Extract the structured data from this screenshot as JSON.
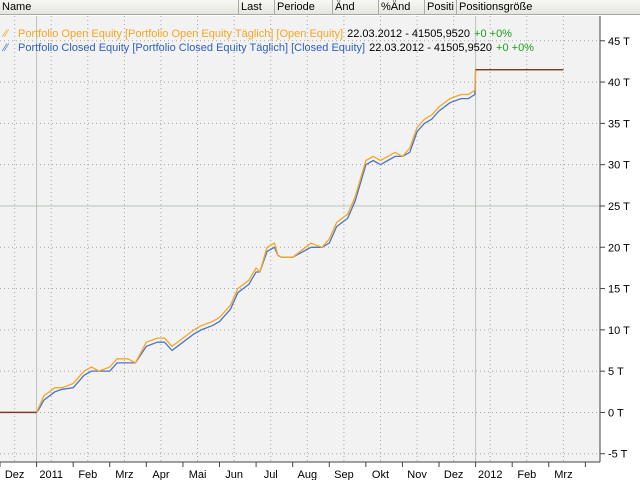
{
  "columns": [
    "Name",
    "Last",
    "Periode",
    "Änd",
    "%Änd",
    "Positi",
    "Positionsgröße"
  ],
  "legend": [
    {
      "prefix": "Portfolio Open Equity [Portfolio Open Equity  Täglich] [Open Equity]",
      "details": "22.03.2012 - 41505,9520",
      "change": "+0 +0%",
      "color": "#f5a623"
    },
    {
      "prefix": "Portfolio Closed Equity [Portfolio Closed Equity  Täglich] [Closed Equity]",
      "details": "22.03.2012 - 41505,9520",
      "change": "+0 +0%",
      "color": "#4a74c9"
    }
  ],
  "colors": {
    "open": "#f5a623",
    "closed": "#4a74c9",
    "text_closed": "#3060c0",
    "change": "#1aa01a",
    "plot_bg": "#f2f2f2",
    "grid": "#a8a8a8"
  },
  "chart_data": {
    "type": "line",
    "ylim": [
      -6,
      48
    ],
    "y_ticks": [
      -5,
      0,
      5,
      10,
      15,
      20,
      25,
      30,
      35,
      40,
      45
    ],
    "y_tick_labels": [
      "-5 T",
      "0 T",
      "5 T",
      "10 T",
      "15 T",
      "20 T",
      "25 T",
      "30 T",
      "35 T",
      "40 T",
      "45 T"
    ],
    "x_labels": [
      "Dez",
      "2011",
      "Feb",
      "Mrz",
      "Apr",
      "Mai",
      "Jun",
      "Jul",
      "Aug",
      "Sep",
      "Okt",
      "Nov",
      "Dez",
      "2012",
      "Feb",
      "Mrz"
    ],
    "x_label_index": [
      0.4,
      1.4,
      2.4,
      3.4,
      4.4,
      5.4,
      6.4,
      7.4,
      8.4,
      9.4,
      10.4,
      11.4,
      12.4,
      13.4,
      14.4,
      15.4
    ],
    "x_major_index": [
      1,
      13
    ],
    "x_range": [
      0,
      16.4
    ],
    "series": [
      {
        "name": "Portfolio Open Equity",
        "color": "#f5a623",
        "x": [
          0,
          1.0,
          1.05,
          1.2,
          1.5,
          1.7,
          2.0,
          2.3,
          2.5,
          2.7,
          3.0,
          3.2,
          3.5,
          3.7,
          4.0,
          4.3,
          4.5,
          4.7,
          5.0,
          5.3,
          5.5,
          5.8,
          6.0,
          6.3,
          6.5,
          6.8,
          7.0,
          7.1,
          7.3,
          7.5,
          7.6,
          7.7,
          8.0,
          8.5,
          8.8,
          9.0,
          9.2,
          9.5,
          9.7,
          10.0,
          10.2,
          10.4,
          10.6,
          10.8,
          11.0,
          11.2,
          11.4,
          11.6,
          11.8,
          12.0,
          12.3,
          12.6,
          12.8,
          12.98,
          13.0,
          15.4
        ],
        "y": [
          0,
          0,
          0.5,
          2.0,
          3.0,
          3.0,
          3.5,
          5.0,
          5.5,
          5.0,
          5.5,
          6.5,
          6.5,
          6.0,
          8.5,
          9.0,
          9.0,
          8.0,
          9.0,
          10.0,
          10.5,
          11.0,
          11.5,
          13.0,
          15.0,
          16.0,
          17.5,
          17.0,
          20.0,
          20.5,
          19.0,
          18.8,
          18.8,
          20.5,
          20.0,
          21.0,
          23.0,
          24.0,
          26.0,
          30.5,
          31.0,
          30.5,
          31.0,
          31.5,
          31.0,
          32.0,
          34.5,
          35.5,
          36.0,
          37.0,
          38.0,
          38.5,
          38.5,
          39.0,
          41.5,
          41.5
        ]
      },
      {
        "name": "Portfolio Closed Equity",
        "color": "#4a74c9",
        "x": [
          0,
          1.0,
          1.05,
          1.2,
          1.5,
          1.7,
          2.0,
          2.3,
          2.5,
          2.7,
          3.0,
          3.2,
          3.5,
          3.7,
          4.0,
          4.3,
          4.5,
          4.7,
          5.0,
          5.3,
          5.5,
          5.8,
          6.0,
          6.3,
          6.5,
          6.8,
          7.0,
          7.1,
          7.3,
          7.5,
          7.6,
          7.7,
          8.0,
          8.5,
          8.8,
          9.0,
          9.2,
          9.5,
          9.7,
          10.0,
          10.2,
          10.4,
          10.6,
          10.8,
          11.0,
          11.2,
          11.4,
          11.6,
          11.8,
          12.0,
          12.3,
          12.6,
          12.8,
          12.98,
          13.0,
          15.4
        ],
        "y": [
          0,
          0,
          0.3,
          1.5,
          2.5,
          2.8,
          3.0,
          4.5,
          5.0,
          5.0,
          5.0,
          6.0,
          6.0,
          6.0,
          8.0,
          8.5,
          8.5,
          7.5,
          8.5,
          9.5,
          10.0,
          10.5,
          11.0,
          12.5,
          14.5,
          15.5,
          17.0,
          17.0,
          19.5,
          20.0,
          19.0,
          18.8,
          18.8,
          20.0,
          20.0,
          20.5,
          22.5,
          23.5,
          25.5,
          30.0,
          30.5,
          30.0,
          30.5,
          31.0,
          31.0,
          31.5,
          34.0,
          35.0,
          35.5,
          36.5,
          37.5,
          38.0,
          38.0,
          38.5,
          41.5,
          41.5
        ]
      }
    ]
  }
}
